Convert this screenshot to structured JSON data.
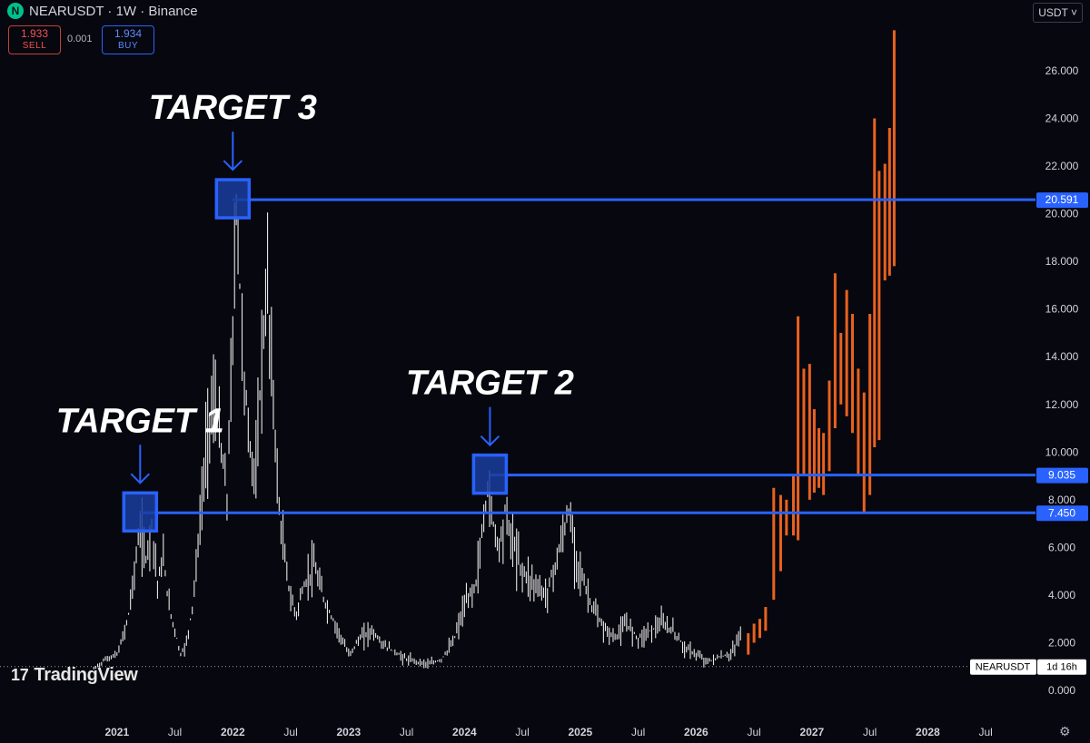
{
  "header": {
    "logo": "N",
    "title": "NEARUSDT · 1W · Binance"
  },
  "trade": {
    "sell_price": "1.933",
    "sell_label": "SELL",
    "spread": "0.001",
    "buy_price": "1.934",
    "buy_label": "BUY"
  },
  "currency_button": "USDT ˅",
  "watermark": "TradingView",
  "watermark_logo": "17",
  "settings_icon": "⚙",
  "colors": {
    "background": "#07070f",
    "target": "#2962ff",
    "history": "#e8e8e8",
    "projection": "#e8621f"
  },
  "chart_data": {
    "type": "bar",
    "symbol": "NEARUSDT",
    "interval": "1W",
    "exchange": "Binance",
    "y_axis_ticks": [
      "0.000",
      "2.000",
      "4.000",
      "6.000",
      "8.000",
      "10.000",
      "12.000",
      "14.000",
      "16.000",
      "18.000",
      "20.000",
      "22.000",
      "24.000",
      "26.000"
    ],
    "ylim": [
      0,
      27.5
    ],
    "x_axis_ticks": [
      {
        "label": "2021",
        "t": 2021.0,
        "bold": true
      },
      {
        "label": "Jul",
        "t": 2021.5,
        "bold": false
      },
      {
        "label": "2022",
        "t": 2022.0,
        "bold": true
      },
      {
        "label": "Jul",
        "t": 2022.5,
        "bold": false
      },
      {
        "label": "2023",
        "t": 2023.0,
        "bold": true
      },
      {
        "label": "Jul",
        "t": 2023.5,
        "bold": false
      },
      {
        "label": "2024",
        "t": 2024.0,
        "bold": true
      },
      {
        "label": "Jul",
        "t": 2024.5,
        "bold": false
      },
      {
        "label": "2025",
        "t": 2025.0,
        "bold": true
      },
      {
        "label": "Jul",
        "t": 2025.5,
        "bold": false
      },
      {
        "label": "2026",
        "t": 2026.0,
        "bold": true
      },
      {
        "label": "Jul",
        "t": 2026.5,
        "bold": false
      },
      {
        "label": "2027",
        "t": 2027.0,
        "bold": true
      },
      {
        "label": "Jul",
        "t": 2027.5,
        "bold": false
      },
      {
        "label": "2028",
        "t": 2028.0,
        "bold": true
      },
      {
        "label": "Jul",
        "t": 2028.5,
        "bold": false
      }
    ],
    "xlim": [
      2019.99,
      2028.93
    ],
    "price_history": [
      {
        "t": 2020.8,
        "p": 0.9
      },
      {
        "t": 2020.9,
        "p": 1.3
      },
      {
        "t": 2021.0,
        "p": 1.5
      },
      {
        "t": 2021.05,
        "p": 2.2
      },
      {
        "t": 2021.1,
        "p": 3.2
      },
      {
        "t": 2021.15,
        "p": 5.0
      },
      {
        "t": 2021.2,
        "p": 6.8
      },
      {
        "t": 2021.25,
        "p": 5.5
      },
      {
        "t": 2021.3,
        "p": 7.0
      },
      {
        "t": 2021.35,
        "p": 4.5
      },
      {
        "t": 2021.4,
        "p": 5.5
      },
      {
        "t": 2021.45,
        "p": 3.5
      },
      {
        "t": 2021.5,
        "p": 2.5
      },
      {
        "t": 2021.55,
        "p": 1.5
      },
      {
        "t": 2021.6,
        "p": 2.0
      },
      {
        "t": 2021.65,
        "p": 3.5
      },
      {
        "t": 2021.7,
        "p": 6.0
      },
      {
        "t": 2021.75,
        "p": 9.0
      },
      {
        "t": 2021.8,
        "p": 11.5
      },
      {
        "t": 2021.85,
        "p": 12.0
      },
      {
        "t": 2021.9,
        "p": 10.0
      },
      {
        "t": 2021.95,
        "p": 8.0
      },
      {
        "t": 2022.0,
        "p": 15.0
      },
      {
        "t": 2022.03,
        "p": 20.5
      },
      {
        "t": 2022.06,
        "p": 17.0
      },
      {
        "t": 2022.1,
        "p": 13.0
      },
      {
        "t": 2022.15,
        "p": 10.0
      },
      {
        "t": 2022.2,
        "p": 9.0
      },
      {
        "t": 2022.25,
        "p": 14.0
      },
      {
        "t": 2022.3,
        "p": 17.0
      },
      {
        "t": 2022.35,
        "p": 12.0
      },
      {
        "t": 2022.4,
        "p": 7.5
      },
      {
        "t": 2022.45,
        "p": 5.5
      },
      {
        "t": 2022.5,
        "p": 3.8
      },
      {
        "t": 2022.55,
        "p": 3.2
      },
      {
        "t": 2022.6,
        "p": 4.2
      },
      {
        "t": 2022.7,
        "p": 5.2
      },
      {
        "t": 2022.8,
        "p": 3.6
      },
      {
        "t": 2022.9,
        "p": 2.6
      },
      {
        "t": 2023.0,
        "p": 1.5
      },
      {
        "t": 2023.1,
        "p": 2.2
      },
      {
        "t": 2023.2,
        "p": 2.5
      },
      {
        "t": 2023.3,
        "p": 1.9
      },
      {
        "t": 2023.4,
        "p": 1.6
      },
      {
        "t": 2023.5,
        "p": 1.3
      },
      {
        "t": 2023.6,
        "p": 1.2
      },
      {
        "t": 2023.7,
        "p": 1.1
      },
      {
        "t": 2023.8,
        "p": 1.3
      },
      {
        "t": 2023.9,
        "p": 2.0
      },
      {
        "t": 2024.0,
        "p": 3.5
      },
      {
        "t": 2024.1,
        "p": 4.5
      },
      {
        "t": 2024.15,
        "p": 6.5
      },
      {
        "t": 2024.2,
        "p": 8.5
      },
      {
        "t": 2024.25,
        "p": 7.0
      },
      {
        "t": 2024.3,
        "p": 6.0
      },
      {
        "t": 2024.35,
        "p": 7.5
      },
      {
        "t": 2024.4,
        "p": 6.5
      },
      {
        "t": 2024.5,
        "p": 5.0
      },
      {
        "t": 2024.6,
        "p": 4.5
      },
      {
        "t": 2024.7,
        "p": 4.0
      },
      {
        "t": 2024.8,
        "p": 5.5
      },
      {
        "t": 2024.9,
        "p": 7.5
      },
      {
        "t": 2024.95,
        "p": 6.0
      },
      {
        "t": 2025.0,
        "p": 5.0
      },
      {
        "t": 2025.1,
        "p": 3.5
      },
      {
        "t": 2025.2,
        "p": 2.6
      },
      {
        "t": 2025.3,
        "p": 2.2
      },
      {
        "t": 2025.4,
        "p": 2.8
      },
      {
        "t": 2025.5,
        "p": 2.2
      },
      {
        "t": 2025.6,
        "p": 2.5
      },
      {
        "t": 2025.7,
        "p": 2.8
      },
      {
        "t": 2025.8,
        "p": 2.5
      },
      {
        "t": 2025.9,
        "p": 1.8
      },
      {
        "t": 2026.0,
        "p": 1.5
      },
      {
        "t": 2026.1,
        "p": 1.2
      },
      {
        "t": 2026.2,
        "p": 1.4
      },
      {
        "t": 2026.3,
        "p": 1.5
      },
      {
        "t": 2026.35,
        "p": 2.0
      },
      {
        "t": 2026.4,
        "p": 2.6
      }
    ],
    "projection": [
      {
        "t": 2026.45,
        "low": 1.5,
        "high": 2.4
      },
      {
        "t": 2026.5,
        "low": 2.0,
        "high": 2.8
      },
      {
        "t": 2026.55,
        "low": 2.2,
        "high": 3.0
      },
      {
        "t": 2026.6,
        "low": 2.5,
        "high": 3.5
      },
      {
        "t": 2026.67,
        "low": 3.8,
        "high": 8.5
      },
      {
        "t": 2026.73,
        "low": 5.0,
        "high": 8.2
      },
      {
        "t": 2026.78,
        "low": 6.5,
        "high": 8.0
      },
      {
        "t": 2026.84,
        "low": 6.5,
        "high": 9.0
      },
      {
        "t": 2026.88,
        "low": 6.3,
        "high": 15.7
      },
      {
        "t": 2026.93,
        "low": 9.0,
        "high": 13.5
      },
      {
        "t": 2026.98,
        "low": 8.0,
        "high": 13.7
      },
      {
        "t": 2027.02,
        "low": 8.3,
        "high": 11.8
      },
      {
        "t": 2027.06,
        "low": 8.5,
        "high": 11.0
      },
      {
        "t": 2027.1,
        "low": 8.2,
        "high": 10.8
      },
      {
        "t": 2027.15,
        "low": 9.2,
        "high": 13.0
      },
      {
        "t": 2027.2,
        "low": 11.0,
        "high": 17.5
      },
      {
        "t": 2027.25,
        "low": 12.0,
        "high": 15.0
      },
      {
        "t": 2027.3,
        "low": 11.5,
        "high": 16.8
      },
      {
        "t": 2027.35,
        "low": 10.8,
        "high": 15.8
      },
      {
        "t": 2027.4,
        "low": 9.0,
        "high": 13.5
      },
      {
        "t": 2027.45,
        "low": 7.5,
        "high": 12.5
      },
      {
        "t": 2027.5,
        "low": 8.2,
        "high": 15.8
      },
      {
        "t": 2027.54,
        "low": 10.2,
        "high": 24.0
      },
      {
        "t": 2027.58,
        "low": 10.5,
        "high": 21.8
      },
      {
        "t": 2027.63,
        "low": 17.2,
        "high": 22.1
      },
      {
        "t": 2027.67,
        "low": 17.4,
        "high": 23.6
      },
      {
        "t": 2027.71,
        "low": 17.8,
        "high": 27.7
      }
    ],
    "targets": [
      {
        "label": "TARGET 1",
        "value": 7.45,
        "value_label": "7.450",
        "t": 2021.2
      },
      {
        "label": "TARGET 2",
        "value": 9.035,
        "value_label": "9.035",
        "t": 2024.22
      },
      {
        "label": "TARGET 3",
        "value": 20.591,
        "value_label": "20.591",
        "t": 2022.0
      }
    ],
    "current_symbol_label": "NEARUSDT",
    "countdown_label": "1d 16h",
    "current_value": 1.0
  }
}
